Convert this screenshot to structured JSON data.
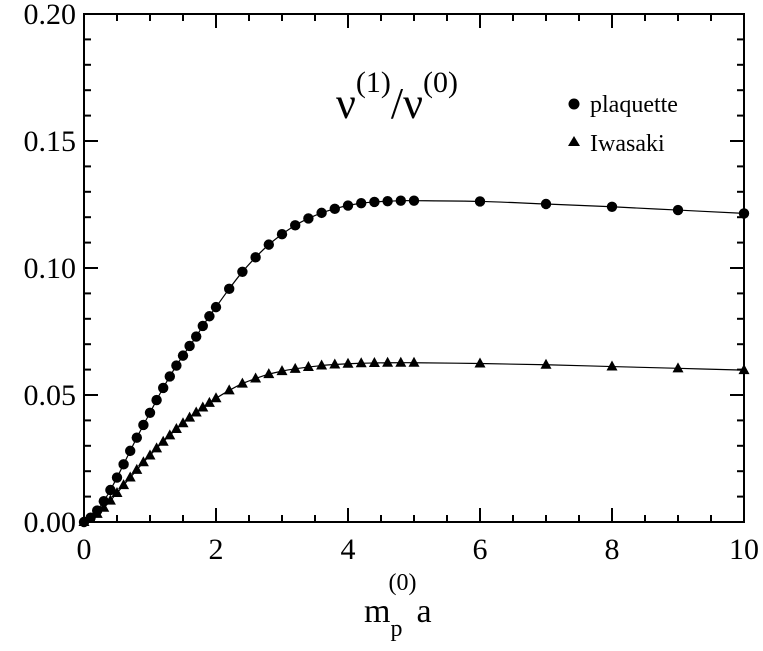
{
  "chart_data": {
    "type": "scatter",
    "title": "",
    "xlabel": "m_p^(0) a",
    "ylabel": "",
    "xlim": [
      0,
      10
    ],
    "ylim": [
      0,
      0.2
    ],
    "x_ticks": [
      0,
      2,
      4,
      6,
      8,
      10
    ],
    "x_tick_labels": [
      "0",
      "2",
      "4",
      "6",
      "8",
      "10"
    ],
    "y_ticks": [
      0,
      0.05,
      0.1,
      0.15,
      0.2
    ],
    "y_tick_labels": [
      "0.00",
      "0.05",
      "0.10",
      "0.15",
      "0.20"
    ],
    "x_minor_step": 0.5,
    "y_minor_step": 0.01,
    "grid": false,
    "legend_position": "top-right",
    "annotation": {
      "base": "ν",
      "sup1": "(1)",
      "slash": "/",
      "base2": "ν",
      "sup2": "(0)"
    },
    "xlabel_parts": {
      "m": "m",
      "sub": "p",
      "sup": "(0)",
      "a": "a"
    },
    "series": [
      {
        "name": "plaquette",
        "marker": "circle",
        "x": [
          0,
          0.1,
          0.2,
          0.3,
          0.4,
          0.5,
          0.6,
          0.7,
          0.8,
          0.9,
          1.0,
          1.1,
          1.2,
          1.3,
          1.4,
          1.5,
          1.6,
          1.7,
          1.8,
          1.9,
          2.0,
          2.2,
          2.4,
          2.6,
          2.8,
          3.0,
          3.2,
          3.4,
          3.6,
          3.8,
          4.0,
          4.2,
          4.4,
          4.6,
          4.8,
          5.0,
          6,
          7,
          8,
          9,
          10
        ],
        "y": [
          0,
          0.0017,
          0.0045,
          0.0082,
          0.0126,
          0.0175,
          0.0227,
          0.028,
          0.0332,
          0.0382,
          0.043,
          0.048,
          0.0528,
          0.0573,
          0.0616,
          0.0655,
          0.0693,
          0.073,
          0.0772,
          0.081,
          0.0846,
          0.0918,
          0.0985,
          0.1042,
          0.1092,
          0.1133,
          0.1168,
          0.1195,
          0.1217,
          0.1233,
          0.1246,
          0.1255,
          0.126,
          0.1263,
          0.1265,
          0.1265,
          0.1262,
          0.1252,
          0.1241,
          0.1228,
          0.1215
        ]
      },
      {
        "name": "Iwasaki",
        "marker": "triangle",
        "x": [
          0,
          0.1,
          0.2,
          0.3,
          0.4,
          0.5,
          0.6,
          0.7,
          0.8,
          0.9,
          1.0,
          1.1,
          1.2,
          1.3,
          1.4,
          1.5,
          1.6,
          1.7,
          1.8,
          1.9,
          2.0,
          2.2,
          2.4,
          2.6,
          2.8,
          3.0,
          3.2,
          3.4,
          3.6,
          3.8,
          4.0,
          4.2,
          4.4,
          4.6,
          4.8,
          5.0,
          6,
          7,
          8,
          9,
          10
        ],
        "y": [
          0,
          0.0013,
          0.0032,
          0.0056,
          0.0084,
          0.0114,
          0.0145,
          0.0175,
          0.0205,
          0.0235,
          0.0262,
          0.029,
          0.0316,
          0.0341,
          0.0366,
          0.0389,
          0.0411,
          0.0431,
          0.0451,
          0.0469,
          0.0487,
          0.0518,
          0.0545,
          0.0565,
          0.0582,
          0.0594,
          0.0603,
          0.061,
          0.0616,
          0.062,
          0.0623,
          0.0625,
          0.0626,
          0.0627,
          0.0627,
          0.0627,
          0.0624,
          0.0619,
          0.0612,
          0.0605,
          0.0598
        ]
      }
    ]
  }
}
